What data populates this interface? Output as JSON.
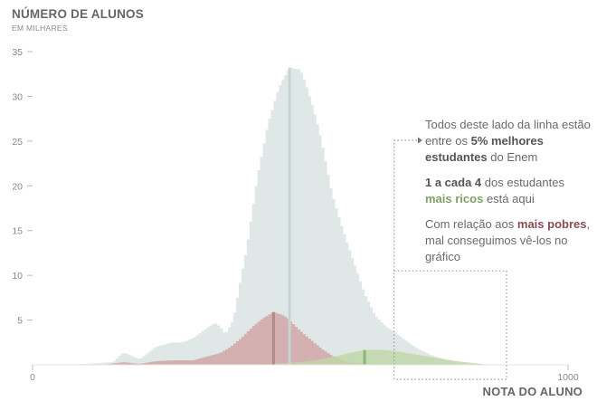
{
  "chart_data": {
    "type": "area",
    "title": "",
    "ylabel": "NÚMERO DE ALUNOS",
    "ylabel_sub": "EM MILHARES",
    "xlabel": "NOTA DO ALUNO",
    "xlim": [
      0,
      1000
    ],
    "ylim": [
      0,
      35
    ],
    "yticks": [
      5,
      10,
      15,
      20,
      25,
      30,
      35
    ],
    "xticks": [
      0,
      1000
    ],
    "grid": false,
    "legend": "none",
    "series": [
      {
        "color": "#dfe8e6",
        "x": [
          55,
          100,
          150,
          170,
          200,
          230,
          260,
          280,
          300,
          340,
          350,
          360,
          375,
          390,
          400,
          420,
          440,
          460,
          480,
          500,
          510,
          530,
          540,
          550,
          560,
          580,
          600,
          620,
          640,
          660,
          680,
          700,
          720,
          740,
          760,
          780,
          800,
          820,
          850,
          880,
          920
        ],
        "y": [
          0,
          0.1,
          0.3,
          1.4,
          0.6,
          2.0,
          2.5,
          2.5,
          3.0,
          4.7,
          4.3,
          3.4,
          5.0,
          10.0,
          13.0,
          21.0,
          27.0,
          31.0,
          33.2,
          33.0,
          31.5,
          27.5,
          25.0,
          22.0,
          19.0,
          15.0,
          11.5,
          8.0,
          5.5,
          4.3,
          3.5,
          2.6,
          1.8,
          1.2,
          0.8,
          0.4,
          0.15,
          0.05,
          0,
          0,
          0
        ]
      },
      {
        "color": "#d2a4a4",
        "x": [
          130,
          170,
          200,
          230,
          260,
          300,
          330,
          350,
          370,
          390,
          410,
          430,
          450,
          470,
          480,
          500,
          520,
          540,
          560,
          580,
          600,
          640,
          680
        ],
        "y": [
          0,
          0.3,
          0.1,
          0.4,
          0.5,
          0.5,
          1.0,
          1.3,
          2.0,
          3.0,
          4.2,
          5.2,
          5.9,
          5.5,
          5.0,
          3.8,
          2.8,
          1.8,
          1.0,
          0.5,
          0.2,
          0.05,
          0
        ]
      },
      {
        "color": "#bfd7a6",
        "x": [
          420,
          460,
          500,
          540,
          570,
          590,
          610,
          620,
          640,
          660,
          690,
          720,
          760,
          800,
          840,
          880
        ],
        "y": [
          0,
          0.15,
          0.3,
          0.6,
          1.0,
          1.3,
          1.55,
          1.65,
          1.7,
          1.65,
          1.4,
          1.1,
          0.7,
          0.35,
          0.1,
          0
        ]
      }
    ],
    "median_lines": [
      {
        "x": 480,
        "y": 33.2,
        "color": "#c5d5d3"
      },
      {
        "x": 450,
        "y": 5.9,
        "color": "#b08a8a"
      },
      {
        "x": 620,
        "y": 1.65,
        "color": "#8fb37a"
      }
    ],
    "highlight_region": {
      "x_from": 675,
      "x_to": 885,
      "y_to": 10.5
    }
  },
  "annotations": {
    "top5": {
      "pre": "Todos deste lado da linha estão entre os ",
      "bold": "5% melhores estudantes",
      "post": " do Enem"
    },
    "rich": {
      "bold": "1 a cada 4",
      "mid": " dos estudantes ",
      "highlight": "mais ricos",
      "post": " está aqui"
    },
    "poor": {
      "pre": "Com relação aos ",
      "highlight": "mais pobres",
      "post": ", mal conseguimos vê-los no gráfico"
    }
  },
  "colors": {
    "axis_text": "#888888",
    "dotted_box": "#9a9a9a"
  }
}
